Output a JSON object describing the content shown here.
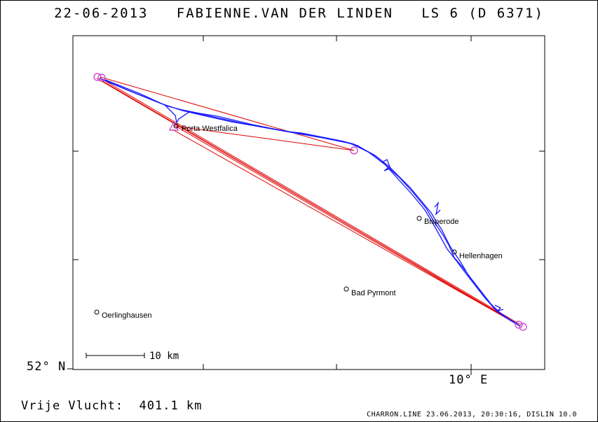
{
  "header": {
    "title": "22-06-2013   FABIENNE.VAN DER LINDEN   LS 6 (D 6371)"
  },
  "axes": {
    "lat_label": "52° N",
    "lon_label": "10° E"
  },
  "scale_bar": {
    "label": "10 km"
  },
  "summary": {
    "flight_label": "Vrije Vlucht:  401.1 km"
  },
  "footer": {
    "text": "CHARRON.LINE 23.06.2013, 20:30:16, DISLIN 10.0"
  },
  "towns": [
    {
      "name": "Porta Westfalica"
    },
    {
      "name": "Bisperode"
    },
    {
      "name": "Hellenhagen"
    },
    {
      "name": "Bad Pyrmont"
    },
    {
      "name": "Oerlinghausen"
    }
  ],
  "colors": {
    "track": "#1a1aff",
    "task_line": "#e00000",
    "turnpoint": "#cc33cc",
    "frame": "#000000"
  }
}
